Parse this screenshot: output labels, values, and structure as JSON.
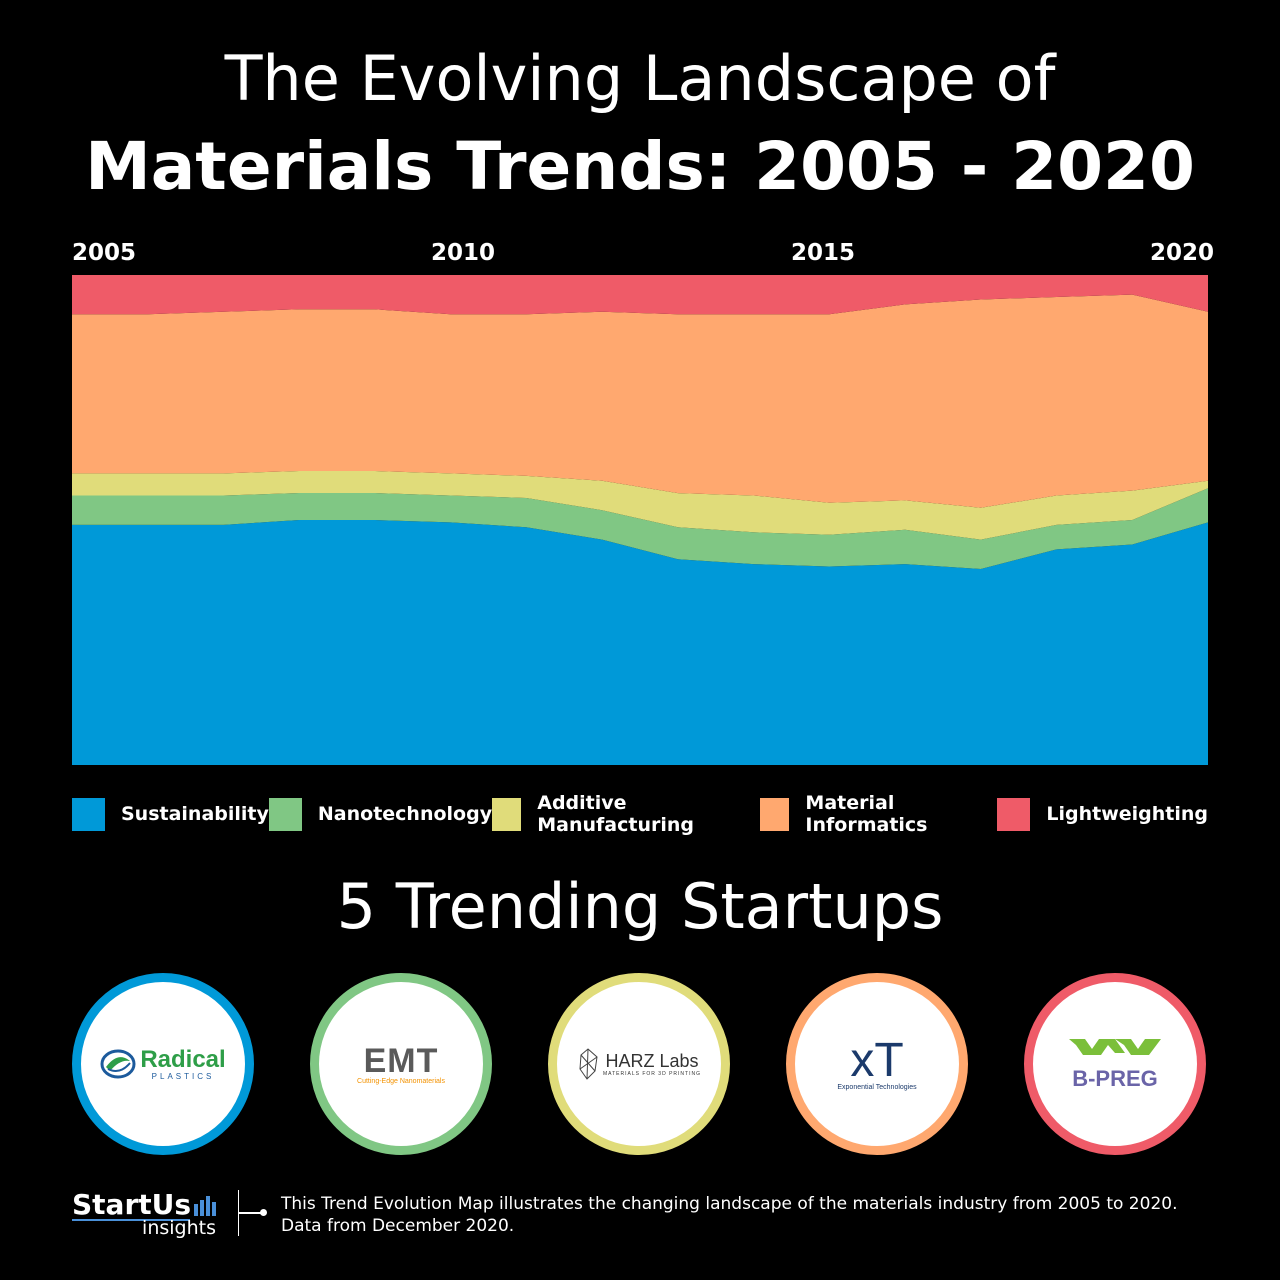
{
  "header": {
    "title_line1": "The Evolving Landscape of",
    "title_line2": "Materials Trends: 2005 - 2020"
  },
  "chart_data": {
    "type": "area",
    "stacked": true,
    "normalized": true,
    "x": [
      2005,
      2006,
      2007,
      2008,
      2009,
      2010,
      2011,
      2012,
      2013,
      2014,
      2015,
      2016,
      2017,
      2018,
      2019,
      2020
    ],
    "x_tick_labels": [
      "2005",
      "2010",
      "2015",
      "2020"
    ],
    "series": [
      {
        "name": "Sustainability",
        "color": "#0099d8",
        "values": [
          0.49,
          0.49,
          0.49,
          0.5,
          0.5,
          0.495,
          0.485,
          0.46,
          0.42,
          0.41,
          0.405,
          0.41,
          0.4,
          0.44,
          0.45,
          0.495
        ]
      },
      {
        "name": "Nanotechnology",
        "color": "#80c784",
        "values": [
          0.06,
          0.06,
          0.06,
          0.055,
          0.055,
          0.055,
          0.06,
          0.06,
          0.065,
          0.065,
          0.065,
          0.07,
          0.06,
          0.05,
          0.05,
          0.07
        ]
      },
      {
        "name": "Additive Manufacturing",
        "color": "#e0dc7a",
        "values": [
          0.045,
          0.045,
          0.045,
          0.045,
          0.045,
          0.045,
          0.045,
          0.06,
          0.07,
          0.075,
          0.065,
          0.06,
          0.065,
          0.06,
          0.06,
          0.015
        ]
      },
      {
        "name": "Material Informatics",
        "color": "#ffa86f",
        "values": [
          0.325,
          0.325,
          0.33,
          0.33,
          0.33,
          0.325,
          0.33,
          0.345,
          0.365,
          0.37,
          0.385,
          0.4,
          0.425,
          0.405,
          0.4,
          0.345
        ]
      },
      {
        "name": "Lightweighting",
        "color": "#ef5b68",
        "values": [
          0.08,
          0.08,
          0.075,
          0.07,
          0.07,
          0.08,
          0.08,
          0.075,
          0.08,
          0.08,
          0.08,
          0.06,
          0.05,
          0.045,
          0.04,
          0.075
        ]
      }
    ],
    "ylim": [
      0,
      1
    ],
    "grid": false,
    "legend_position": "bottom"
  },
  "section": {
    "title": "5 Trending Startups"
  },
  "startups": [
    {
      "name": "Radical",
      "tagline": "PLASTICS",
      "ring_color": "#0099d8"
    },
    {
      "name": "EMT",
      "tagline": "Cutting-Edge Nanomaterials",
      "ring_color": "#80c784"
    },
    {
      "name": "HARZ Labs",
      "tagline": "MATERIALS FOR 3D PRINTING",
      "ring_color": "#e0dc7a"
    },
    {
      "name": "xT",
      "tagline": "Exponential Technologies",
      "ring_color": "#ffa86f"
    },
    {
      "name": "B-PREG",
      "tagline": "",
      "ring_color": "#ef5b68"
    }
  ],
  "footer": {
    "brand": "StartUs",
    "brand_sub": "insights",
    "description_line1": "This Trend Evolution Map illustrates the changing landscape of the materials industry from 2005 to 2020.",
    "description_line2": "Data from December 2020."
  }
}
